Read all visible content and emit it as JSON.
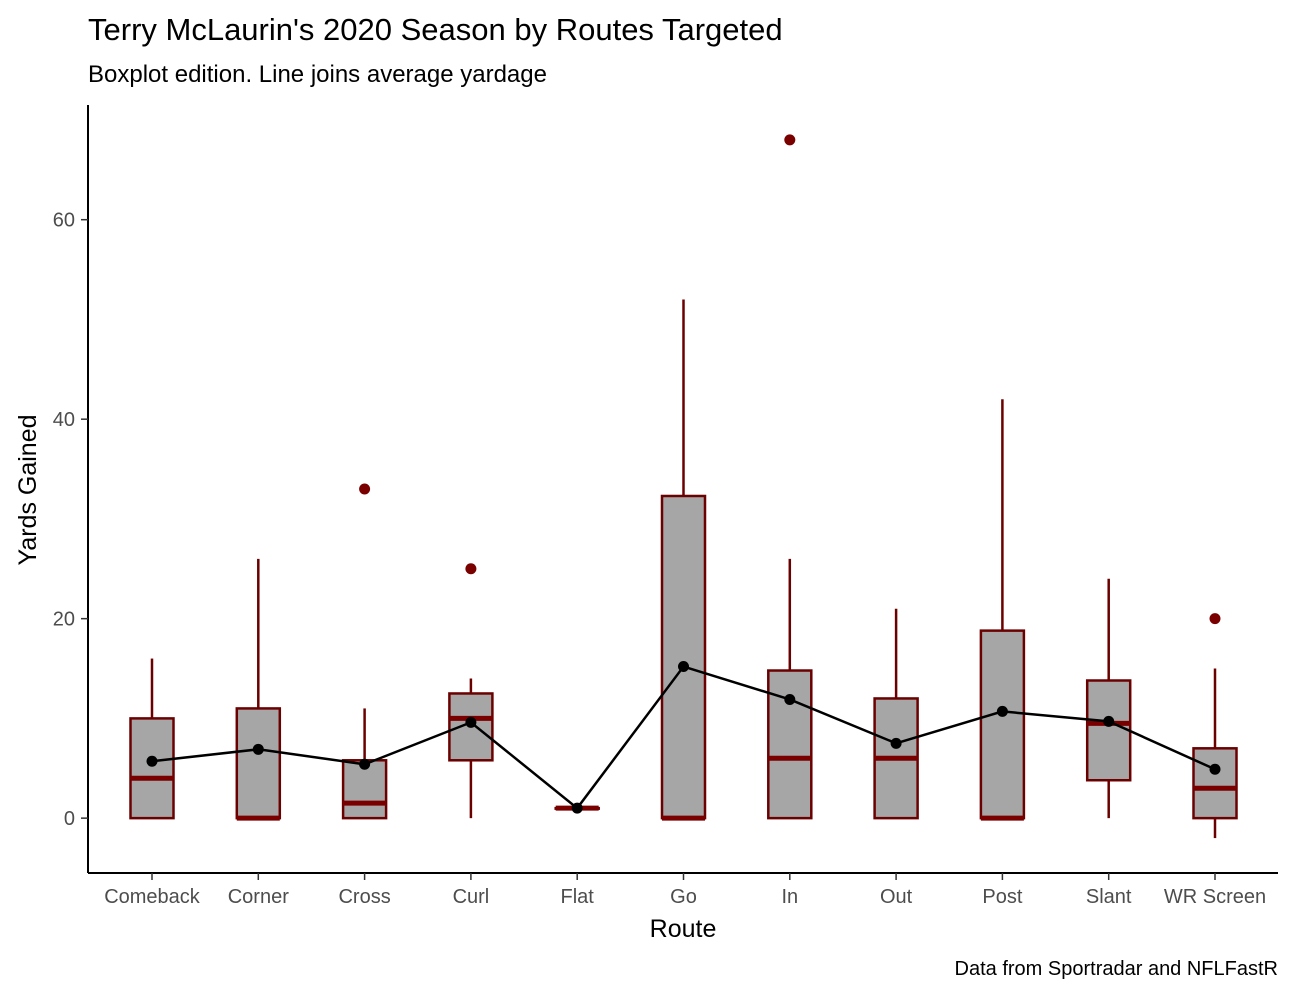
{
  "chart_data": {
    "type": "boxplot",
    "title": "Terry McLaurin's 2020 Season by Routes Targeted",
    "subtitle": "Boxplot edition. Line joins average yardage",
    "xlabel": "Route",
    "ylabel": "Yards Gained",
    "caption": "Data from Sportradar and NFLFastR",
    "categories": [
      "Comeback",
      "Corner",
      "Cross",
      "Curl",
      "Flat",
      "Go",
      "In",
      "Out",
      "Post",
      "Slant",
      "WR Screen"
    ],
    "ylim": [
      -5.5,
      71.5
    ],
    "yticks": [
      0,
      20,
      40,
      60
    ],
    "grid": false,
    "colors": {
      "box_fill": "#a6a6a6",
      "box_stroke": "#6b0000",
      "median": "#7a0000",
      "outlier": "#7a0000",
      "mean_line": "#000000",
      "axis": "#000000"
    },
    "boxes": [
      {
        "route": "Comeback",
        "whisker_low": 0,
        "q1": 0,
        "median": 4,
        "q3": 10,
        "whisker_high": 16,
        "outliers": []
      },
      {
        "route": "Corner",
        "whisker_low": 0,
        "q1": 0,
        "median": 0,
        "q3": 11,
        "whisker_high": 26,
        "outliers": []
      },
      {
        "route": "Cross",
        "whisker_low": 0,
        "q1": 0,
        "median": 1.5,
        "q3": 5.8,
        "whisker_high": 11,
        "outliers": [
          33
        ]
      },
      {
        "route": "Curl",
        "whisker_low": 0,
        "q1": 5.8,
        "median": 10,
        "q3": 12.5,
        "whisker_high": 14,
        "outliers": [
          25
        ]
      },
      {
        "route": "Flat",
        "whisker_low": 1,
        "q1": 1,
        "median": 1,
        "q3": 1,
        "whisker_high": 1,
        "outliers": []
      },
      {
        "route": "Go",
        "whisker_low": 0,
        "q1": 0,
        "median": 0,
        "q3": 32.3,
        "whisker_high": 52,
        "outliers": []
      },
      {
        "route": "In",
        "whisker_low": 0,
        "q1": 0,
        "median": 6,
        "q3": 14.8,
        "whisker_high": 26,
        "outliers": [
          68
        ]
      },
      {
        "route": "Out",
        "whisker_low": 0,
        "q1": 0,
        "median": 6,
        "q3": 12,
        "whisker_high": 21,
        "outliers": []
      },
      {
        "route": "Post",
        "whisker_low": 0,
        "q1": 0,
        "median": 0,
        "q3": 18.8,
        "whisker_high": 42,
        "outliers": []
      },
      {
        "route": "Slant",
        "whisker_low": 0,
        "q1": 3.8,
        "median": 9.5,
        "q3": 13.8,
        "whisker_high": 24,
        "outliers": []
      },
      {
        "route": "WR Screen",
        "whisker_low": -2,
        "q1": 0,
        "median": 3,
        "q3": 7,
        "whisker_high": 15,
        "outliers": [
          20
        ]
      }
    ],
    "series": [
      {
        "values": [
          5.7,
          6.9,
          5.4,
          9.6,
          1.0,
          15.2,
          11.9,
          7.5,
          10.7,
          9.7,
          4.9
        ]
      }
    ]
  }
}
